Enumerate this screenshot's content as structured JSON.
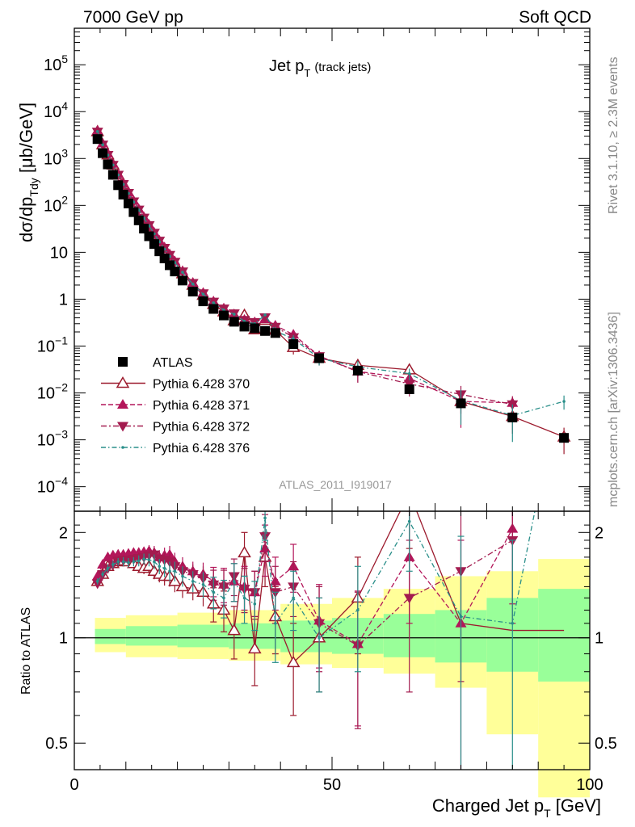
{
  "header": {
    "left": "7000 GeV pp",
    "right": "Soft QCD"
  },
  "plot_title": {
    "main": "Jet p",
    "sub": "T",
    "suffix": "(track jets)"
  },
  "side_labels": {
    "rivet": "Rivet 3.1.10, ≥ 2.3M events",
    "mcplots": "mcplots.cern.ch [arXiv:1306.3436]"
  },
  "watermark": "ATLAS_2011_I919017",
  "ylabel_main": {
    "part1": "dσ/dp",
    "sub1": "Tdy",
    "part2": " [μb/GeV]"
  },
  "ylabel_ratio": "Ratio to ATLAS",
  "xlabel": {
    "part1": "Charged Jet p",
    "sub": "T",
    "part2": " [GeV]"
  },
  "colors": {
    "atlas": "#000000",
    "p370": "#9c1a2d",
    "p371": "#b3165a",
    "p372": "#a31b4f",
    "p376": "#2a8f8a",
    "band_green": "#99ff99",
    "band_yellow": "#ffff99"
  },
  "chart_data": {
    "type": "scatter",
    "x_range": [
      0,
      100
    ],
    "x_ticks": [
      "0",
      "50",
      "100"
    ],
    "main_panel": {
      "y_scale": "log",
      "y_range": [
        3e-05,
        600000
      ],
      "y_tick_labels": [
        "10^-4",
        "10^-3",
        "10^-2",
        "10^-1",
        "1",
        "10",
        "10^2",
        "10^3",
        "10^4",
        "10^5"
      ]
    },
    "ratio_panel": {
      "y_scale": "log",
      "y_range": [
        0.42,
        2.3
      ],
      "y_tick_labels": [
        "0.5",
        "1",
        "2"
      ]
    },
    "x": [
      4.5,
      5.5,
      6.5,
      7.5,
      8.5,
      9.5,
      10.5,
      11.5,
      12.5,
      13.5,
      14.5,
      15.5,
      16.5,
      17.5,
      18.5,
      19.5,
      21,
      23,
      25,
      27,
      29,
      31,
      33,
      35,
      37,
      39,
      42.5,
      47.5,
      55,
      65,
      75,
      85,
      95
    ],
    "atlas": [
      2600,
      1300,
      750,
      450,
      270,
      170,
      110,
      72,
      48,
      32,
      22,
      15,
      10.5,
      7.4,
      5.3,
      3.9,
      2.5,
      1.45,
      0.9,
      0.62,
      0.45,
      0.33,
      0.26,
      0.24,
      0.21,
      0.19,
      0.11,
      0.055,
      0.03,
      0.012,
      0.006,
      0.003,
      0.0011
    ],
    "legend": [
      "ATLAS",
      "Pythia 6.428 370",
      "Pythia 6.428 371",
      "Pythia 6.428 372",
      "Pythia 6.428 376"
    ],
    "series": [
      {
        "name": "Pythia 6.428 370",
        "ratio": [
          1.45,
          1.52,
          1.6,
          1.63,
          1.65,
          1.66,
          1.65,
          1.63,
          1.6,
          1.58,
          1.6,
          1.55,
          1.52,
          1.5,
          1.5,
          1.45,
          1.4,
          1.38,
          1.35,
          1.25,
          1.2,
          1.05,
          1.75,
          0.93,
          1.7,
          1.15,
          0.85,
          1.0,
          1.3,
          2.6,
          1.1,
          1.05,
          1.05
        ],
        "ratio_err": [
          0.03,
          0.03,
          0.04,
          0.04,
          0.04,
          0.05,
          0.05,
          0.05,
          0.06,
          0.06,
          0.07,
          0.08,
          0.08,
          0.09,
          0.1,
          0.1,
          0.1,
          0.1,
          0.12,
          0.14,
          0.16,
          0.18,
          0.25,
          0.2,
          0.3,
          0.25,
          0.25,
          0.3,
          0.4,
          0.8,
          0.5,
          0.6,
          0.6
        ],
        "show_ratio_n": 30
      },
      {
        "name": "Pythia 6.428 371",
        "ratio": [
          1.5,
          1.62,
          1.7,
          1.72,
          1.73,
          1.73,
          1.74,
          1.75,
          1.75,
          1.76,
          1.77,
          1.75,
          1.7,
          1.72,
          1.73,
          1.65,
          1.6,
          1.55,
          1.52,
          1.45,
          1.42,
          1.45,
          1.4,
          1.35,
          1.8,
          1.45,
          1.6,
          1.12,
          0.96,
          1.7,
          1.1,
          2.05
        ],
        "ratio_err": [
          0.03,
          0.03,
          0.04,
          0.04,
          0.04,
          0.05,
          0.05,
          0.05,
          0.06,
          0.06,
          0.07,
          0.08,
          0.08,
          0.09,
          0.1,
          0.1,
          0.1,
          0.1,
          0.12,
          0.14,
          0.16,
          0.18,
          0.2,
          0.2,
          0.3,
          0.25,
          0.25,
          0.3,
          0.4,
          0.6,
          0.8,
          0.8
        ]
      },
      {
        "name": "Pythia 6.428 372",
        "ratio": [
          1.43,
          1.52,
          1.58,
          1.62,
          1.66,
          1.67,
          1.67,
          1.68,
          1.69,
          1.7,
          1.72,
          1.73,
          1.68,
          1.67,
          1.65,
          1.6,
          1.55,
          1.52,
          1.48,
          1.42,
          1.4,
          1.5,
          1.38,
          1.35,
          1.95,
          1.35,
          1.4,
          1.1,
          0.95,
          1.3,
          1.55,
          1.9
        ],
        "ratio_err": [
          0.03,
          0.03,
          0.04,
          0.04,
          0.04,
          0.05,
          0.05,
          0.05,
          0.06,
          0.06,
          0.07,
          0.08,
          0.08,
          0.09,
          0.1,
          0.1,
          0.1,
          0.1,
          0.12,
          0.14,
          0.16,
          0.18,
          0.2,
          0.2,
          0.3,
          0.25,
          0.25,
          0.3,
          0.4,
          0.6,
          0.8,
          0.8
        ]
      },
      {
        "name": "Pythia 6.428 376",
        "ratio": [
          1.45,
          1.52,
          1.58,
          1.62,
          1.65,
          1.65,
          1.64,
          1.65,
          1.66,
          1.68,
          1.67,
          1.65,
          1.6,
          1.58,
          1.55,
          1.55,
          1.5,
          1.45,
          1.42,
          1.35,
          1.3,
          1.45,
          1.3,
          1.25,
          2.2,
          1.1,
          1.3,
          1.0,
          1.2,
          2.15,
          1.15,
          1.1,
          6.0
        ],
        "ratio_err": [
          0.03,
          0.03,
          0.04,
          0.04,
          0.04,
          0.05,
          0.05,
          0.05,
          0.06,
          0.06,
          0.07,
          0.08,
          0.08,
          0.09,
          0.1,
          0.1,
          0.1,
          0.1,
          0.12,
          0.14,
          0.16,
          0.18,
          0.2,
          0.2,
          0.3,
          0.25,
          0.25,
          0.3,
          0.4,
          0.6,
          0.8,
          0.8,
          2
        ]
      }
    ],
    "bands": {
      "edges": [
        4,
        10,
        20,
        30,
        40,
        50,
        60,
        70,
        80,
        90,
        100
      ],
      "green": [
        [
          0.96,
          1.06
        ],
        [
          0.95,
          1.08
        ],
        [
          0.94,
          1.09
        ],
        [
          0.93,
          1.1
        ],
        [
          0.91,
          1.12
        ],
        [
          0.9,
          1.14
        ],
        [
          0.88,
          1.17
        ],
        [
          0.85,
          1.2
        ],
        [
          0.8,
          1.3
        ],
        [
          0.75,
          1.38
        ]
      ],
      "yellow": [
        [
          0.91,
          1.14
        ],
        [
          0.88,
          1.16
        ],
        [
          0.87,
          1.18
        ],
        [
          0.86,
          1.2
        ],
        [
          0.84,
          1.25
        ],
        [
          0.82,
          1.3
        ],
        [
          0.79,
          1.38
        ],
        [
          0.72,
          1.5
        ],
        [
          0.53,
          1.55
        ],
        [
          0.35,
          1.68
        ]
      ]
    }
  }
}
